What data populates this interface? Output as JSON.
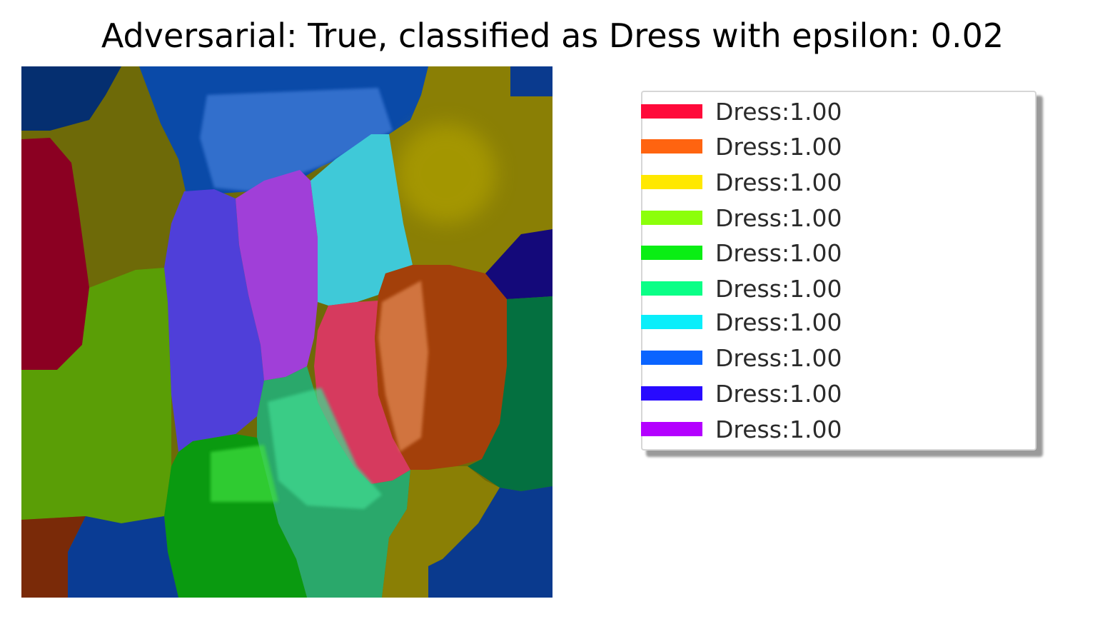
{
  "title": "Adversarial: True, classified as Dress with epsilon: 0.02",
  "legend": {
    "items": [
      {
        "label": "Dress:1.00",
        "color": "#ff0a3a"
      },
      {
        "label": "Dress:1.00",
        "color": "#ff6410"
      },
      {
        "label": "Dress:1.00",
        "color": "#ffe800"
      },
      {
        "label": "Dress:1.00",
        "color": "#8cff0a"
      },
      {
        "label": "Dress:1.00",
        "color": "#0aee14"
      },
      {
        "label": "Dress:1.00",
        "color": "#0aff86"
      },
      {
        "label": "Dress:1.00",
        "color": "#0aeefa"
      },
      {
        "label": "Dress:1.00",
        "color": "#0a64ff"
      },
      {
        "label": "Dress:1.00",
        "color": "#280aff"
      },
      {
        "label": "Dress:1.00",
        "color": "#b400ff"
      }
    ]
  }
}
